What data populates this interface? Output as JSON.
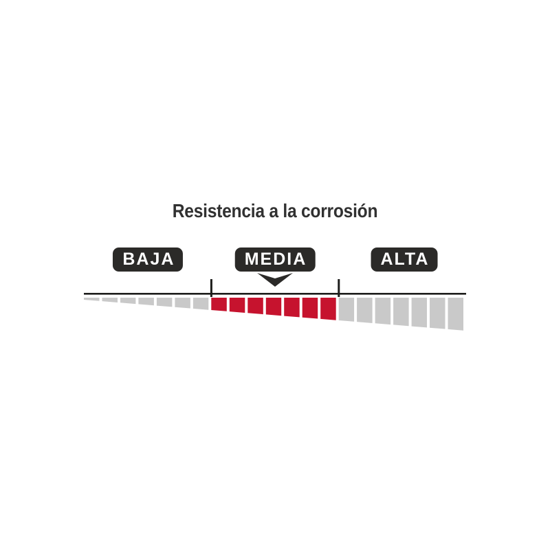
{
  "title": "Resistencia a la corrosión",
  "scale": {
    "selected": "MEDIA",
    "sections": [
      {
        "label": "BAJA",
        "segments": 7,
        "active": false
      },
      {
        "label": "MEDIA",
        "segments": 7,
        "active": true
      },
      {
        "label": "ALTA",
        "segments": 7,
        "active": false
      }
    ]
  },
  "icons": {
    "pointer": "down-arrow-icon"
  },
  "colors": {
    "background": "#ffffff",
    "title_text": "#313131",
    "badge_background": "#2b2a28",
    "badge_text": "#ffffff",
    "segment_active": "#c6132e",
    "segment_inactive": "#c9c9c9",
    "axis_line": "#1d1d1b"
  },
  "chart_data": {
    "type": "scale-indicator",
    "title": "Resistencia a la corrosión",
    "categories": [
      "BAJA",
      "MEDIA",
      "ALTA"
    ],
    "selected_value": "MEDIA",
    "segments_per_category": 7,
    "total_segments": 21,
    "layout": "horizontal wedge of segments growing left-to-right; middle section (MEDIA) highlighted red with down-arrow pointer; baseline with ticks at section boundaries"
  }
}
